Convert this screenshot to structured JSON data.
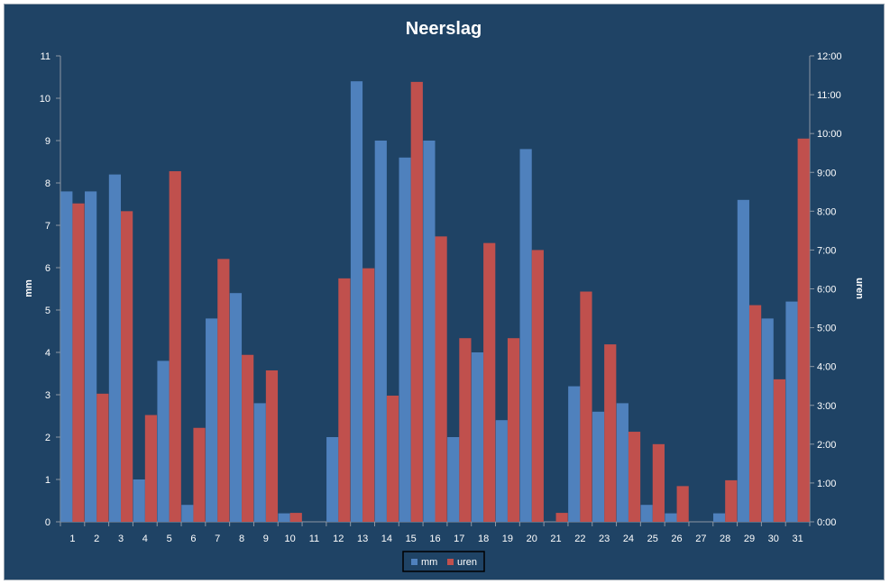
{
  "chart_data": {
    "type": "bar",
    "title": "Neerslag",
    "ylabel": "mm",
    "y2label": "uren",
    "ylim": [
      0,
      11
    ],
    "yticks": [
      "0",
      "1",
      "2",
      "3",
      "4",
      "5",
      "6",
      "7",
      "8",
      "9",
      "10",
      "11"
    ],
    "y2lim_hours": [
      0,
      12
    ],
    "y2ticks": [
      "0:00",
      "1:00",
      "2:00",
      "3:00",
      "4:00",
      "5:00",
      "6:00",
      "7:00",
      "8:00",
      "9:00",
      "10:00",
      "11:00",
      "12:00"
    ],
    "categories": [
      "1",
      "2",
      "3",
      "4",
      "5",
      "6",
      "7",
      "8",
      "9",
      "10",
      "11",
      "12",
      "13",
      "14",
      "15",
      "16",
      "17",
      "18",
      "19",
      "20",
      "21",
      "22",
      "23",
      "24",
      "25",
      "26",
      "27",
      "28",
      "29",
      "30",
      "31"
    ],
    "series": [
      {
        "name": "mm",
        "axis": "left",
        "color": "#4f81bd",
        "values": [
          7.8,
          7.8,
          8.2,
          1.0,
          3.8,
          0.4,
          4.8,
          5.4,
          2.8,
          0.2,
          0,
          2.0,
          10.4,
          9.0,
          8.6,
          9.0,
          2.0,
          4.0,
          2.4,
          8.8,
          0,
          3.2,
          2.6,
          2.8,
          0.4,
          0.2,
          0,
          0.2,
          7.6,
          4.8,
          5.2
        ]
      },
      {
        "name": "uren",
        "axis": "right",
        "color": "#c0504d",
        "values": [
          8.2,
          3.3,
          8.0,
          2.75,
          9.03,
          2.42,
          6.77,
          4.3,
          3.9,
          0.23,
          0,
          6.27,
          6.53,
          3.25,
          11.33,
          7.35,
          4.73,
          7.18,
          4.73,
          7.0,
          0.23,
          5.93,
          4.57,
          2.32,
          2.0,
          0.92,
          0,
          1.07,
          5.58,
          3.67,
          9.87
        ]
      }
    ],
    "legend": {
      "position": "bottom",
      "entries": [
        "mm",
        "uren"
      ]
    },
    "grid": false
  }
}
